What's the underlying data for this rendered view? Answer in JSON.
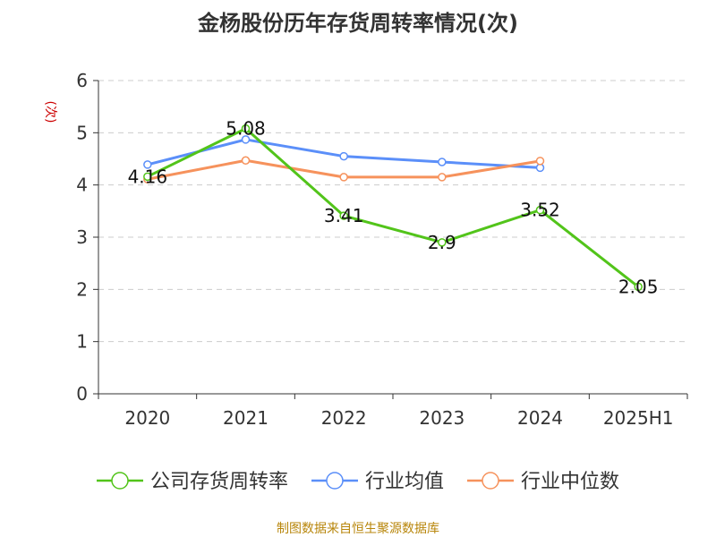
{
  "chart_data": {
    "type": "line",
    "title": "金杨股份历年存货周转率情况(次)",
    "ylabel": "(次)",
    "categories": [
      "2020",
      "2021",
      "2022",
      "2023",
      "2024",
      "2025H1"
    ],
    "ylim": [
      0,
      6
    ],
    "yticks": [
      0,
      1,
      2,
      3,
      4,
      5,
      6
    ],
    "grid": true,
    "legend_position": "bottom",
    "series": [
      {
        "name": "公司存货周转率",
        "color": "#52c41a",
        "values": [
          4.16,
          5.08,
          3.41,
          2.9,
          3.52,
          2.05
        ],
        "data_labels": [
          "4.16",
          "5.08",
          "3.41",
          "2.9",
          "3.52",
          "2.05"
        ]
      },
      {
        "name": "行业均值",
        "color": "#5b8ff9",
        "values": [
          4.39,
          4.87,
          4.55,
          4.44,
          4.33,
          null
        ]
      },
      {
        "name": "行业中位数",
        "color": "#f6925c",
        "values": [
          4.11,
          4.47,
          4.15,
          4.15,
          4.46,
          null
        ]
      }
    ]
  },
  "footer": {
    "source": "制图数据来自恒生聚源数据库"
  }
}
